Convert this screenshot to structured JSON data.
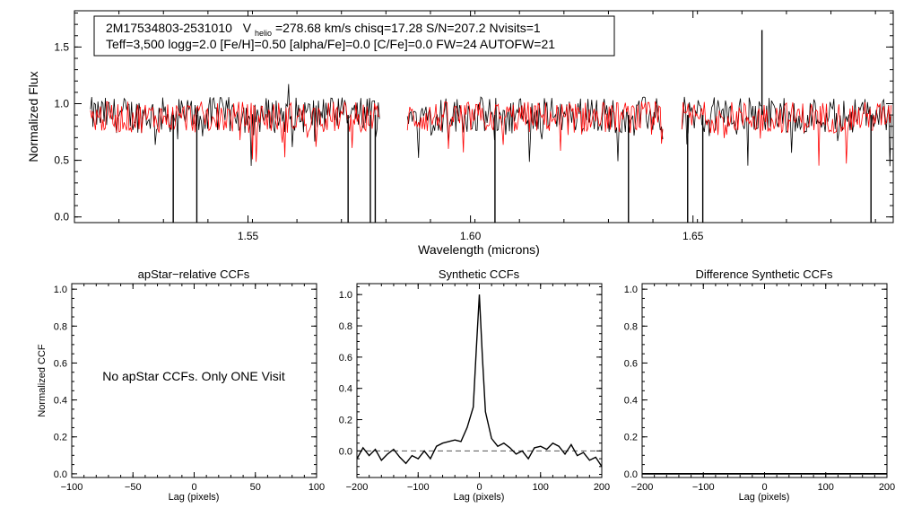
{
  "info_box": {
    "line1_star": "2M17534803-2531010",
    "line1_v": "V",
    "line1_v_sub": "helio",
    "line1_rest": "=278.68 km/s  chisq=17.28  S/N=207.2  Nvisits=1",
    "line2": "Teff=3,500 logg=2.0 [Fe/H]=0.50 [alpha/Fe]=0.0 [C/Fe]=0.0 FW=24 AUTOFW=21"
  },
  "colors": {
    "observed": "#000000",
    "model": "#ff0000",
    "axes": "#000000",
    "zero_line": "#555555"
  },
  "chart_data": [
    {
      "id": "spectrum",
      "type": "line",
      "title": "",
      "xlabel": "Wavelength (microns)",
      "ylabel": "Normalized Flux",
      "xlim": [
        1.511,
        1.695
      ],
      "ylim": [
        -0.05,
        1.82
      ],
      "xticks": [
        1.55,
        1.6,
        1.65
      ],
      "xtick_labels": [
        "1.55",
        "1.60",
        "1.65"
      ],
      "yticks": [
        0.0,
        0.5,
        1.0,
        1.5
      ],
      "ytick_labels": [
        "0.0",
        "0.5",
        "1.0",
        "1.5"
      ],
      "chip_ranges": [
        [
          1.5146,
          1.5798
        ],
        [
          1.5858,
          1.6433
        ],
        [
          1.6475,
          1.6946
        ]
      ],
      "series": [
        {
          "name": "observed spectrum",
          "color": "#000000",
          "base_level": 0.9,
          "scatter": 0.16
        },
        {
          "name": "best-fit synthetic spectrum",
          "color": "#ff0000",
          "base_level": 0.88,
          "scatter": 0.14
        }
      ],
      "features": [
        {
          "x": 1.5332,
          "y": -0.05
        },
        {
          "x": 1.5385,
          "y": -0.05
        },
        {
          "x": 1.5725,
          "y": -0.05
        },
        {
          "x": 1.5775,
          "y": -0.05
        },
        {
          "x": 1.5786,
          "y": -0.05
        },
        {
          "x": 1.6055,
          "y": -0.05
        },
        {
          "x": 1.6355,
          "y": -0.05
        },
        {
          "x": 1.6488,
          "y": -0.05
        },
        {
          "x": 1.6522,
          "y": -0.05
        },
        {
          "x": 1.69,
          "y": -0.05
        },
        {
          "x": 1.6655,
          "y": 1.65
        }
      ]
    },
    {
      "id": "apstar_ccf",
      "type": "line",
      "title": "apStar−relative CCFs",
      "xlabel": "Lag (pixels)",
      "ylabel": "Normalized CCF",
      "xlim": [
        -100,
        100
      ],
      "ylim": [
        -0.02,
        1.03
      ],
      "xticks": [
        -100,
        -50,
        0,
        50,
        100
      ],
      "xtick_labels": [
        "−100",
        "−50",
        "0",
        "50",
        "100"
      ],
      "yticks": [
        0.0,
        0.2,
        0.4,
        0.6,
        0.8,
        1.0
      ],
      "ytick_labels": [
        "0.0",
        "0.2",
        "0.4",
        "0.6",
        "0.8",
        "1.0"
      ],
      "annotation": "No apStar CCFs.  Only ONE Visit",
      "series": []
    },
    {
      "id": "synthetic_ccf",
      "type": "line",
      "title": "Synthetic CCFs",
      "xlabel": "Lag (pixels)",
      "ylabel": "",
      "xlim": [
        -200,
        200
      ],
      "ylim": [
        -0.17,
        1.07
      ],
      "xticks": [
        -200,
        -100,
        0,
        100,
        200
      ],
      "xtick_labels": [
        "−200",
        "−100",
        "0",
        "100",
        "200"
      ],
      "yticks": [
        0.0,
        0.2,
        0.4,
        0.6,
        0.8,
        1.0
      ],
      "ytick_labels": [
        "0.0",
        "0.2",
        "0.4",
        "0.6",
        "0.8",
        "1.0"
      ],
      "zero_line": 0.0,
      "series": [
        {
          "name": "synthetic CCF",
          "x": [
            -200,
            -190,
            -180,
            -170,
            -160,
            -150,
            -140,
            -130,
            -120,
            -110,
            -100,
            -90,
            -80,
            -70,
            -60,
            -50,
            -40,
            -30,
            -20,
            -10,
            -5,
            0,
            5,
            10,
            20,
            30,
            40,
            50,
            60,
            70,
            80,
            90,
            100,
            110,
            120,
            130,
            140,
            150,
            160,
            170,
            180,
            190,
            200
          ],
          "y": [
            -0.05,
            0.02,
            -0.03,
            0.01,
            -0.06,
            -0.02,
            0.01,
            -0.04,
            -0.08,
            -0.03,
            -0.05,
            0.0,
            -0.05,
            0.03,
            0.05,
            0.06,
            0.07,
            0.06,
            0.15,
            0.28,
            0.65,
            1.0,
            0.6,
            0.25,
            0.08,
            0.03,
            0.05,
            0.02,
            -0.02,
            0.0,
            -0.05,
            0.02,
            0.03,
            0.01,
            0.05,
            0.03,
            -0.02,
            0.04,
            -0.03,
            -0.01,
            -0.06,
            -0.04,
            -0.1
          ]
        }
      ]
    },
    {
      "id": "difference_ccf",
      "type": "line",
      "title": "Difference Synthetic CCFs",
      "xlabel": "Lag (pixels)",
      "ylabel": "",
      "xlim": [
        -200,
        200
      ],
      "ylim": [
        -0.02,
        1.03
      ],
      "xticks": [
        -200,
        -100,
        0,
        100,
        200
      ],
      "xtick_labels": [
        "−200",
        "−100",
        "0",
        "100",
        "200"
      ],
      "yticks": [
        0.0,
        0.2,
        0.4,
        0.6,
        0.8,
        1.0
      ],
      "ytick_labels": [
        "0.0",
        "0.2",
        "0.4",
        "0.6",
        "0.8",
        "1.0"
      ],
      "series": [
        {
          "name": "difference CCF",
          "x": [
            -200,
            200
          ],
          "y": [
            0.0,
            0.0
          ]
        }
      ]
    }
  ]
}
